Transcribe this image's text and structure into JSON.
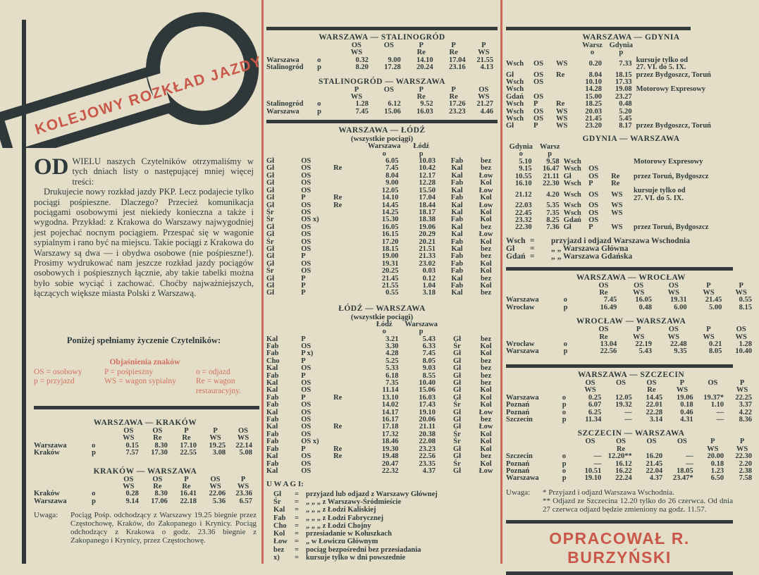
{
  "colors": {
    "paper": "#e4dec9",
    "ink": "#2e3a3a",
    "red": "#c9584a",
    "legend_red": "#d0705f"
  },
  "banner": {
    "title": "KOLEJOWY ROZKŁAD JAZDY"
  },
  "article": {
    "dropcap": "OD",
    "paragraphs": [
      "WIELU naszych Czytelników otrzymaliśmy w tych dniach listy o następującej mniej więcej treści:",
      "Drukujecie nowy rozkład jazdy PKP. Lecz podajecie tylko pociągi pośpieszne. Dlaczego? Przecież komunikacja pociągami osobowymi jest niekiedy konieczna a także i wygodna. Przykład: z Krakowa do Warszawy najwygodniej jest pojechać nocnym pociągiem. Przespać się w wagonie sypialnym i rano być na miejscu. Takie pociągi z Krakowa do Warszawy są dwa — i obydwa osobowe (nie pośpieszne!). Prosimy wydrukować nam jeszcze rozkład jazdy pociągów osobowych i pośpiesznych łącznie, aby takie tabelki można było sobie wyciąć i zachować. Choćby najważniejszych, łączących większe miasta Polski z Warszawą."
    ],
    "closing": "Poniżej spełniamy życzenie Czytelników:"
  },
  "legend": {
    "title": "Objaśnienia znaków",
    "items": [
      "OS = osobowy",
      "P = pośpieszny",
      "o = odjazd",
      "p = przyjazd",
      "WS = wagon sypialny",
      "Re = wagon restauracyjny."
    ]
  },
  "tables": {
    "warszawa_krakow": {
      "title": "WARSZAWA — KRAKÓW",
      "header": [
        [
          "",
          "",
          "OS",
          "OS",
          "P",
          "P",
          "OS"
        ],
        [
          "",
          "",
          "WS",
          "Re",
          "Re",
          "WS",
          "WS"
        ]
      ],
      "rows": [
        [
          "Warszawa",
          "o",
          "0.15",
          "8.30",
          "17.10",
          "19.25",
          "22.14"
        ],
        [
          "Kraków",
          "p",
          "7.57",
          "17.30",
          "22.55",
          "3.08",
          "5.08"
        ]
      ]
    },
    "krakow_warszawa": {
      "title": "KRAKÓW — WARSZAWA",
      "header": [
        [
          "",
          "",
          "OS",
          "OS",
          "P",
          "OS",
          "P"
        ],
        [
          "",
          "",
          "WS",
          "Re",
          "Re",
          "WS",
          "WS"
        ]
      ],
      "rows": [
        [
          "Kraków",
          "o",
          "0.28",
          "8.30",
          "16.41",
          "22.06",
          "23.36"
        ],
        [
          "Warszawa",
          "p",
          "9.14",
          "17.06",
          "22.18",
          "5.36",
          "6.57"
        ]
      ]
    },
    "warszawa_stalinogrod": {
      "title": "WARSZAWA — STALINOGRÓD",
      "header": [
        [
          "",
          "",
          "OS",
          "OS",
          "P",
          "P",
          "P"
        ],
        [
          "",
          "",
          "WS",
          "",
          "Re",
          "Re",
          "WS"
        ]
      ],
      "rows": [
        [
          "Warszawa",
          "o",
          "0.32",
          "9.00",
          "14.10",
          "17.04",
          "21.55"
        ],
        [
          "Stalinogród",
          "p",
          "8.20",
          "17.28",
          "20.24",
          "23.16",
          "4.13"
        ]
      ]
    },
    "stalinogrod_warszawa": {
      "title": "STALINOGRÓD — WARSZAWA",
      "header": [
        [
          "",
          "",
          "P",
          "OS",
          "P",
          "P",
          "OS"
        ],
        [
          "",
          "",
          "WS",
          "",
          "Re",
          "Re",
          "WS"
        ]
      ],
      "rows": [
        [
          "Stalinogród",
          "o",
          "1.28",
          "6.12",
          "9.52",
          "17.26",
          "21.27"
        ],
        [
          "Warszawa",
          "p",
          "7.45",
          "15.06",
          "16.03",
          "23.23",
          "4.46"
        ]
      ]
    },
    "warszawa_lodz": {
      "title": "WARSZAWA — ŁÓDŹ",
      "subtitle": "(wszystkie pociągi)",
      "header": [
        [
          "",
          "",
          "",
          "Warszawa",
          "Łódź",
          "",
          ""
        ],
        [
          "",
          "",
          "",
          "o",
          "p",
          "",
          ""
        ]
      ],
      "rows": [
        [
          "Gł",
          "OS",
          "",
          "6.05",
          "10.03",
          "Fab",
          "bez"
        ],
        [
          "Gł",
          "OS",
          "Re",
          "7.45",
          "10.42",
          "Kal",
          "bez"
        ],
        [
          "Gł",
          "OS",
          "",
          "8.04",
          "12.17",
          "Kal",
          "Łow"
        ],
        [
          "Gł",
          "OS",
          "",
          "9.00",
          "12.28",
          "Fab",
          "Kol"
        ],
        [
          "Gł",
          "OS",
          "",
          "12.05",
          "15.50",
          "Kal",
          "Łow"
        ],
        [
          "Gł",
          "P",
          "Re",
          "14.10",
          "17.04",
          "Fab",
          "Kol"
        ],
        [
          "Gł",
          "OS",
          "Re",
          "14.45",
          "18.44",
          "Kal",
          "Łow"
        ],
        [
          "Śr",
          "OS",
          "",
          "14.25",
          "18.17",
          "Kal",
          "Kol"
        ],
        [
          "Śr",
          "OS x)",
          "",
          "15.30",
          "18.38",
          "Fab",
          "Kol"
        ],
        [
          "Gł",
          "OS",
          "",
          "16.05",
          "19.06",
          "Kal",
          "bez"
        ],
        [
          "Gł",
          "OS",
          "",
          "16.15",
          "20.29",
          "Kal",
          "Łow"
        ],
        [
          "Śr",
          "OS",
          "",
          "17.20",
          "20.21",
          "Fab",
          "Kol"
        ],
        [
          "Gł",
          "OS",
          "",
          "18.15",
          "21.51",
          "Kal",
          "bez"
        ],
        [
          "Gł",
          "P",
          "",
          "19.00",
          "21.33",
          "Fab",
          "bez"
        ],
        [
          "Gł",
          "OS",
          "",
          "19.31",
          "23.02",
          "Fab",
          "Kol"
        ],
        [
          "Śr",
          "OS",
          "",
          "20.25",
          "0.03",
          "Fab",
          "Kol"
        ],
        [
          "Gł",
          "P",
          "",
          "21.45",
          "0.12",
          "Kal",
          "bez"
        ],
        [
          "Gł",
          "P",
          "",
          "21.55",
          "1.04",
          "Fab",
          "Kol"
        ],
        [
          "Gł",
          "P",
          "",
          "0.55",
          "3.18",
          "Kal",
          "bez"
        ]
      ]
    },
    "lodz_warszawa": {
      "title": "ŁÓDŹ — WARSZAWA",
      "subtitle": "(wszystkie pociągi)",
      "header": [
        [
          "",
          "",
          "",
          "Łódź",
          "Warszawa",
          "",
          ""
        ],
        [
          "",
          "",
          "",
          "o",
          "p",
          "",
          ""
        ]
      ],
      "rows": [
        [
          "Kal",
          "P",
          "",
          "3.21",
          "5.43",
          "Gł",
          "bez"
        ],
        [
          "Fab",
          "OS",
          "",
          "3.30",
          "6.33",
          "Śr",
          "Kol"
        ],
        [
          "Fab",
          "P x)",
          "",
          "4.28",
          "7.45",
          "Gł",
          "Kol"
        ],
        [
          "Cho",
          "P",
          "",
          "5.25",
          "8.05",
          "Gł",
          "bez"
        ],
        [
          "Kal",
          "OS",
          "",
          "5.33",
          "9.03",
          "Gł",
          "bez"
        ],
        [
          "Fab",
          "P",
          "",
          "6.18",
          "8.55",
          "Gł",
          "bez"
        ],
        [
          "Kal",
          "OS",
          "",
          "7.35",
          "10.40",
          "Gł",
          "bez"
        ],
        [
          "Kal",
          "OS",
          "",
          "11.14",
          "15.06",
          "Gł",
          "Kol"
        ],
        [
          "Fab",
          "P",
          "Re",
          "13.10",
          "16.03",
          "Gł",
          "Kol"
        ],
        [
          "Fab",
          "OS",
          "",
          "14.02",
          "17.43",
          "Śr",
          "Kol"
        ],
        [
          "Kal",
          "OS",
          "",
          "14.17",
          "19.10",
          "Gł",
          "Łow"
        ],
        [
          "Fab",
          "OS",
          "",
          "16.17",
          "20.06",
          "Gł",
          "bez"
        ],
        [
          "Kal",
          "OS",
          "Re",
          "17.18",
          "21.11",
          "Gł",
          "Łow"
        ],
        [
          "Fab",
          "OS",
          "",
          "17.32",
          "20.38",
          "Śr",
          "Kol"
        ],
        [
          "Fab",
          "OS x)",
          "",
          "18.46",
          "22.08",
          "Śr",
          "Kol"
        ],
        [
          "Fab",
          "P",
          "Re",
          "19.30",
          "23.23",
          "Gł",
          "Kol"
        ],
        [
          "Kal",
          "OS",
          "Re",
          "19.48",
          "22.56",
          "Gł",
          "bez"
        ],
        [
          "Fab",
          "OS",
          "",
          "20.47",
          "23.35",
          "Śr",
          "Kol"
        ],
        [
          "Kal",
          "OS",
          "",
          "22.32",
          "4.37",
          "Gł",
          "Łow"
        ]
      ]
    },
    "warszawa_gdynia": {
      "title": "WARSZAWA — GDYNIA",
      "header": [
        [
          "",
          "",
          "",
          "Warsz",
          "Gdynia",
          ""
        ],
        [
          "",
          "",
          "",
          "o",
          "p",
          ""
        ]
      ],
      "rows": [
        [
          "Wsch",
          "OS",
          "WS",
          "0.20",
          "7.33",
          "kursuje tylko od\n27. VI. do 5. IX."
        ],
        [
          "Gł",
          "OS",
          "Re",
          "8.04",
          "18.15",
          "przez Bydgoszcz, Toruń"
        ],
        [
          "Wsch",
          "OS",
          "",
          "10.10",
          "17.33",
          ""
        ],
        [
          "Wsch",
          "",
          "",
          "14.28",
          "19.08",
          "Motorowy Expresowy"
        ],
        [
          "Gdań",
          "OS",
          "",
          "15.00",
          "23.27",
          ""
        ],
        [
          "Wsch",
          "P",
          "Re",
          "18.25",
          "0.48",
          ""
        ],
        [
          "Wsch",
          "OS",
          "WS",
          "20.03",
          "5.20",
          ""
        ],
        [
          "Wsch",
          "OS",
          "WS",
          "21.45",
          "5.45",
          ""
        ],
        [
          "Gł",
          "P",
          "WS",
          "23.20",
          "8.17",
          "przez Bydgoszcz, Toruń"
        ]
      ]
    },
    "gdynia_warszawa": {
      "title": "GDYNIA — WARSZAWA",
      "header": [
        [
          "Gdynia",
          "Warsz",
          "",
          "",
          "",
          ""
        ],
        [
          "o",
          "p",
          "",
          "",
          "",
          ""
        ]
      ],
      "rows": [
        [
          "5.10",
          "9.58",
          "Wsch",
          "",
          "",
          "Motorowy Expresowy"
        ],
        [
          "9.15",
          "16.47",
          "Wsch",
          "OS",
          "",
          ""
        ],
        [
          "10.55",
          "21.11",
          "Gł",
          "OS",
          "Re",
          "przez Toruń, Bydgoszcz"
        ],
        [
          "16.10",
          "22.30",
          "Wsch",
          "P",
          "Re",
          ""
        ],
        [
          "21.12",
          "4.20",
          "Wsch",
          "OS",
          "WS",
          "kursuje tylko od\n27. VI. do 5. IX."
        ],
        [
          "22.03",
          "5.35",
          "Wsch",
          "OS",
          "WS",
          ""
        ],
        [
          "22.45",
          "7.35",
          "Wsch",
          "OS",
          "WS",
          ""
        ],
        [
          "23.32",
          "8.25",
          "Gdań",
          "OS",
          "",
          ""
        ],
        [
          "22.30",
          "7.36",
          "Gł",
          "P",
          "WS",
          "przez Toruń, Bydgoszcz"
        ]
      ]
    },
    "warszawa_wroclaw": {
      "title": "WARSZAWA — WROCŁAW",
      "header": [
        [
          "",
          "",
          "OS",
          "OS",
          "OS",
          "P",
          "P"
        ],
        [
          "",
          "",
          "Re",
          "WS",
          "WS",
          "WS",
          "WS"
        ]
      ],
      "rows": [
        [
          "Warszawa",
          "o",
          "7.45",
          "16.05",
          "19.31",
          "21.45",
          "0.55"
        ],
        [
          "Wrocław",
          "p",
          "16.49",
          "0.48",
          "6.00",
          "5.00",
          "8.15"
        ]
      ]
    },
    "wroclaw_warszawa": {
      "title": "WROCŁAW — WARSZAWA",
      "header": [
        [
          "",
          "",
          "OS",
          "P",
          "OS",
          "P",
          "OS"
        ],
        [
          "",
          "",
          "Re",
          "WS",
          "WS",
          "WS",
          "WS"
        ]
      ],
      "rows": [
        [
          "Wrocław",
          "o",
          "13.04",
          "22.19",
          "22.48",
          "0.21",
          "1.28"
        ],
        [
          "Warszawa",
          "p",
          "22.56",
          "5.43",
          "9.35",
          "8.05",
          "10.40"
        ]
      ]
    },
    "warszawa_szczecin": {
      "title": "WARSZAWA — SZCZECIN",
      "header": [
        [
          "",
          "",
          "OS",
          "OS",
          "OS",
          "P",
          "OS",
          "P"
        ],
        [
          "",
          "",
          "WS",
          "",
          "Re",
          "WS",
          "",
          "WS"
        ]
      ],
      "rows": [
        [
          "Warszawa",
          "o",
          "0.25",
          "12.05",
          "14.45",
          "19.06",
          "19.37*",
          "22.25"
        ],
        [
          "Poznań",
          "p",
          "6.07",
          "19.32",
          "22.01",
          "0.18",
          "1.10",
          "3.37"
        ],
        [
          "Poznań",
          "o",
          "6.25",
          "—",
          "22.28",
          "0.46",
          "—",
          "4.22"
        ],
        [
          "Szczecin",
          "p",
          "11.34",
          "—",
          "3.14",
          "4.31",
          "—",
          "8.36"
        ]
      ]
    },
    "szczecin_warszawa": {
      "title": "SZCZECIN — WARSZAWA",
      "header": [
        [
          "",
          "",
          "OS",
          "OS",
          "OS",
          "OS",
          "P",
          "P"
        ],
        [
          "",
          "",
          "",
          "Re",
          "",
          "",
          "WS",
          "WS"
        ]
      ],
      "rows": [
        [
          "Szczecin",
          "o",
          "—",
          "12.20**",
          "16.20",
          "—",
          "20.00",
          "22.30"
        ],
        [
          "Poznań",
          "p",
          "—",
          "16.12",
          "21.45",
          "—",
          "0.18",
          "2.20"
        ],
        [
          "Poznań",
          "o",
          "10.51",
          "16.22",
          "22.04",
          "18.05",
          "1.23",
          "2.38"
        ],
        [
          "Warszawa",
          "p",
          "19.10",
          "22.24",
          "4.37",
          "23.47*",
          "6.50",
          "7.58"
        ]
      ]
    }
  },
  "notes": {
    "krakow": {
      "label": "Uwaga:",
      "text": "Pociąg Pośp. odchodzący z Warszawy 19.25 biegnie przez Częstochowę, Kraków, do Zakopanego i Krynicy. Pociąg odchodzący z Krakowa o godz. 23.36 biegnie z Zakopanego i Krynicy, przez Częstochowę."
    },
    "lodz": {
      "label": "U W A G I:",
      "items": [
        [
          "Gł",
          "=",
          "przyjazd lub odjazd z Warszawy Głównej"
        ],
        [
          "Śr",
          "=",
          "„  „  „  z Warszawy-Śródmieście"
        ],
        [
          "Kal",
          "=",
          "„  „  „  z Łodzi Kaliskiej"
        ],
        [
          "Fab",
          "=",
          "„  „  „  z Łodzi Fabrycznej"
        ],
        [
          "Cho",
          "=",
          "„  „  „  z Łodzi Chojny"
        ],
        [
          "Kol",
          "=",
          "przesiadanie w Koluszkach"
        ],
        [
          "Łow",
          "=",
          "„  w Łowiczu Głównym"
        ],
        [
          "bez",
          "=",
          "pociąg bezpośredni bez przesiadania"
        ],
        [
          "x)",
          "=",
          "kursuje tylko w dni powszednie"
        ]
      ]
    },
    "gdynia": {
      "items": [
        [
          "Wsch",
          "=",
          "przyjazd i odjazd Warszawa Wschodnia"
        ],
        [
          "Gł",
          "=",
          "„  „  Warszawa Główna"
        ],
        [
          "Gdań",
          "=",
          "„  „  Warszawa Gdańska"
        ]
      ]
    },
    "szczecin": {
      "label": "Uwaga:",
      "lines": [
        "* Przyjazd i odjazd Warszawa Wschodnia.",
        "** Odjazd ze Szczecina 12.20 tylko do 26 czerwca. Od dnia 27 czerwca odjazd będzie zmieniony na godz. 11.57."
      ]
    }
  },
  "signature": "OPRACOWAŁ R. BURZYŃSKI"
}
